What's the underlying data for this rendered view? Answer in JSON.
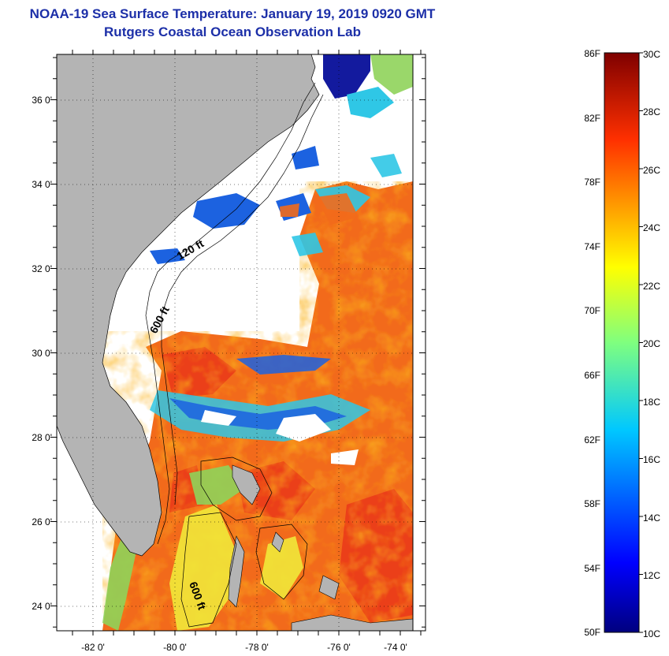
{
  "header": {
    "title": "NOAA-19 Sea Surface Temperature:  January 19, 2019 0920 GMT",
    "subtitle": "Rutgers Coastal Ocean Observation Lab"
  },
  "map": {
    "lat_labels": [
      "36 0'",
      "34 0'",
      "32 0'",
      "30 0'",
      "28 0'",
      "26 0'",
      "24 0'"
    ],
    "lon_labels": [
      "-82 0'",
      "-80 0'",
      "-78 0'",
      "-76 0'",
      "-74 0'"
    ],
    "contour_labels": [
      "120 ft",
      "600 ft",
      "600 ft"
    ]
  },
  "legend": {
    "fahrenheit": [
      "86F",
      "82F",
      "78F",
      "74F",
      "70F",
      "66F",
      "62F",
      "58F",
      "54F",
      "50F"
    ],
    "celsius": [
      "30C",
      "28C",
      "26C",
      "24C",
      "22C",
      "20C",
      "18C",
      "16C",
      "14C",
      "12C",
      "10C"
    ]
  },
  "colors": {
    "title": "#1c2fa8",
    "land": "#b4b4b4",
    "cloud": "#ffffff",
    "warm": "#f26a1b",
    "hot": "#e8321a",
    "mid": "#fbb21b",
    "yellow": "#f1e83a",
    "green": "#8fd35a",
    "cyan": "#2fc7e6",
    "blue": "#1c62e0",
    "navy": "#131a9e"
  }
}
